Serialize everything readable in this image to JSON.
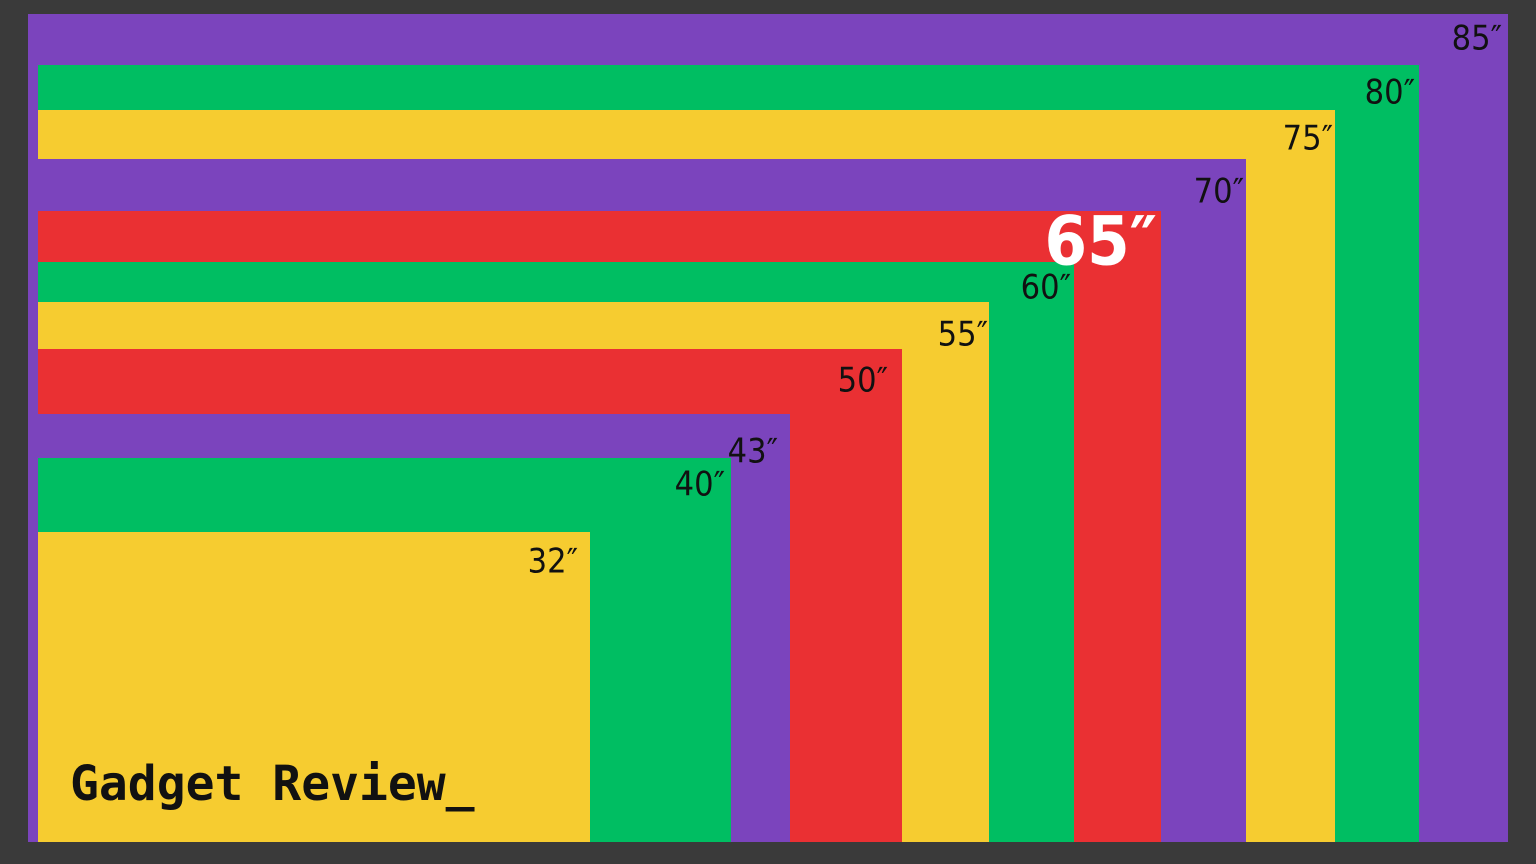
{
  "screens": [
    {
      "label": "85″"
    },
    {
      "label": "80″"
    },
    {
      "label": "75″"
    },
    {
      "label": "70″"
    },
    {
      "label": "65″"
    },
    {
      "label": "60″"
    },
    {
      "label": "55″"
    },
    {
      "label": "50″"
    },
    {
      "label": "43″"
    },
    {
      "label": "40″"
    },
    {
      "label": "32″"
    }
  ],
  "logo": "Gadget Review_"
}
